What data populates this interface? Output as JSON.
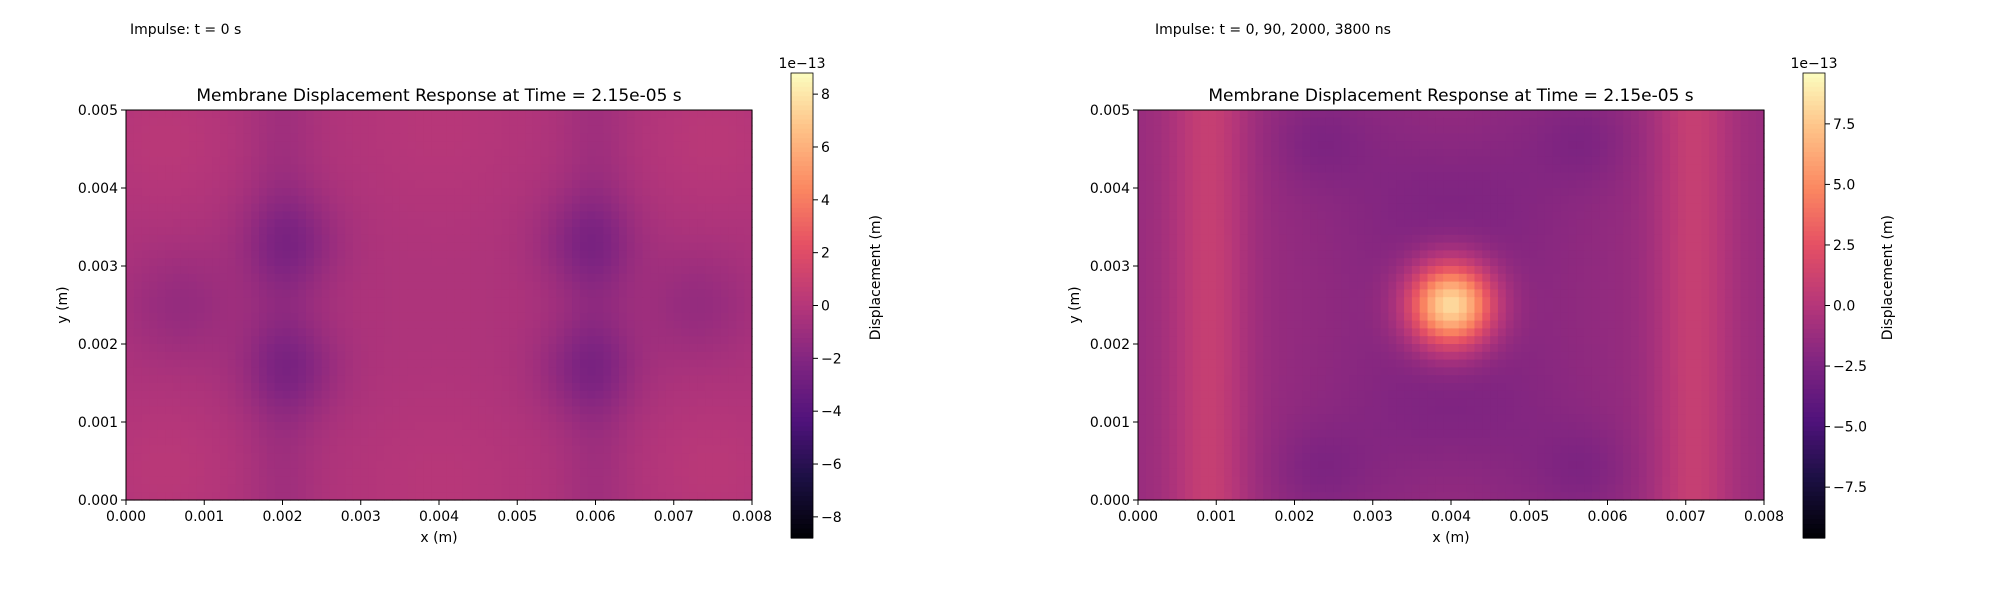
{
  "panels": [
    {
      "caption": "Impulse: t = 0 s",
      "chart_data": {
        "type": "heatmap",
        "title": "Membrane Displacement Response at Time = 2.15e-05 s",
        "xlabel": "x (m)",
        "ylabel": "y (m)",
        "xlim": [
          0,
          0.008
        ],
        "ylim": [
          0,
          0.005
        ],
        "xticks": [
          "0.000",
          "0.001",
          "0.002",
          "0.003",
          "0.004",
          "0.005",
          "0.006",
          "0.007",
          "0.008"
        ],
        "yticks": [
          "0.000",
          "0.001",
          "0.002",
          "0.003",
          "0.004",
          "0.005"
        ],
        "colormap": "magma",
        "colorbar": {
          "label": "Displacement (m)",
          "scale_label": "1e−13",
          "range": [
            -8.8,
            8.8
          ],
          "ticks": [
            -8,
            -6,
            -4,
            -2,
            0,
            2,
            4,
            6,
            8
          ],
          "tick_labels": [
            "−8",
            "−6",
            "−4",
            "−2",
            "0",
            "2",
            "4",
            "6",
            "8"
          ]
        },
        "grid": false,
        "field_pattern": "rhombic-cross"
      }
    },
    {
      "caption": "Impulse: t = 0, 90, 2000, 3800 ns",
      "chart_data": {
        "type": "heatmap",
        "title": "Membrane Displacement Response at Time = 2.15e-05 s",
        "xlabel": "x (m)",
        "ylabel": "y (m)",
        "xlim": [
          0,
          0.008
        ],
        "ylim": [
          0,
          0.005
        ],
        "xticks": [
          "0.000",
          "0.001",
          "0.002",
          "0.003",
          "0.004",
          "0.005",
          "0.006",
          "0.007",
          "0.008"
        ],
        "yticks": [
          "0.000",
          "0.001",
          "0.002",
          "0.003",
          "0.004",
          "0.005"
        ],
        "colormap": "magma",
        "colorbar": {
          "label": "Displacement (m)",
          "scale_label": "1e−13",
          "range": [
            -9.6,
            9.6
          ],
          "ticks": [
            -7.5,
            -5.0,
            -2.5,
            0.0,
            2.5,
            5.0,
            7.5
          ],
          "tick_labels": [
            "−7.5",
            "−5.0",
            "−2.5",
            "0.0",
            "2.5",
            "5.0",
            "7.5"
          ]
        },
        "grid": false,
        "field_pattern": "central-peak"
      }
    }
  ]
}
